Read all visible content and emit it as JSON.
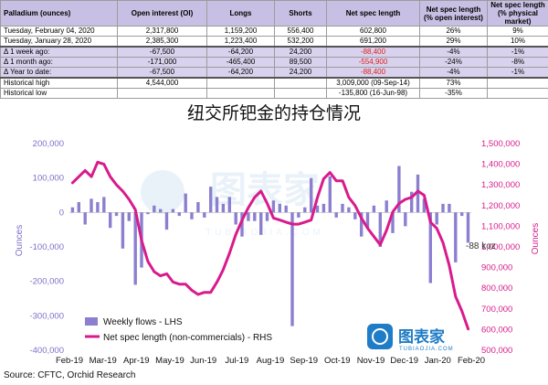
{
  "table": {
    "headers": [
      "Palladium (ounces)",
      "Open interest (OI)",
      "Longs",
      "Shorts",
      "Net spec length",
      "Net spec length (% open interest)",
      "Net spec length (% physical market)"
    ],
    "rows": [
      [
        "Tuesday, February 04, 2020",
        "2,317,800",
        "1,159,200",
        "556,400",
        "602,800",
        "26%",
        "9%"
      ],
      [
        "Tuesday, January 28, 2020",
        "2,385,300",
        "1,223,400",
        "532,200",
        "691,200",
        "29%",
        "10%"
      ],
      [
        "Δ 1 week ago:",
        "-67,500",
        "-64,200",
        "24,200",
        "-88,400",
        "-4%",
        "-1%"
      ],
      [
        "Δ 1 month ago:",
        "-171,000",
        "-465,400",
        "89,500",
        "-554,900",
        "-24%",
        "-8%"
      ],
      [
        "Δ Year to date:",
        "-67,500",
        "-64,200",
        "24,200",
        "-88,400",
        "-4%",
        "-1%"
      ],
      [
        "Historical high",
        "4,544,000",
        "",
        "",
        "3,009,000  (09-Sep-14)",
        "73%",
        ""
      ],
      [
        "Historical low",
        "",
        "",
        "",
        "-135,800  (16-Jun-98)",
        "-35%",
        ""
      ]
    ]
  },
  "chart_data": {
    "type": "bar+line",
    "title": "纽交所钯金的持仓情况",
    "ylabel_left": "Ounces",
    "ylabel_right": "Ounces",
    "ylim_left": [
      -400000,
      200000
    ],
    "ylim_right": [
      500000,
      1500000
    ],
    "yticks_left": [
      "200,000",
      "100,000",
      "0",
      "-100,000",
      "-200,000",
      "-300,000",
      "-400,000"
    ],
    "yticks_right": [
      "1,500,000",
      "1,400,000",
      "1,300,000",
      "1,200,000",
      "1,100,000",
      "1,000,000",
      "900,000",
      "800,000",
      "700,000",
      "600,000",
      "500,000"
    ],
    "xticks": [
      "Feb-19",
      "Mar-19",
      "Apr-19",
      "May-19",
      "Jun-19",
      "Jul-19",
      "Aug-19",
      "Sep-19",
      "Oct-19",
      "Nov-19",
      "Dec-19",
      "Jan-20",
      "Feb-20"
    ],
    "legend": [
      "Weekly flows - LHS",
      "Net spec length (non-commercials) - RHS"
    ],
    "annotation": "-88 koz",
    "source": "Source: CFTC, Orchid Research",
    "watermark": "图表家",
    "watermark_sub": "TUBIAOJIA.COM",
    "series": [
      {
        "name": "Weekly flows - LHS",
        "color": "#8b7fd0",
        "values": [
          15000,
          30000,
          -35000,
          40000,
          30000,
          45000,
          -45000,
          -10000,
          -105000,
          -25000,
          -210000,
          -160000,
          -5000,
          20000,
          10000,
          -50000,
          10000,
          -10000,
          55000,
          -20000,
          30000,
          -15000,
          75000,
          45000,
          25000,
          45000,
          -35000,
          -70000,
          -25000,
          -25000,
          -65000,
          -25000,
          35000,
          25000,
          20000,
          -330000,
          -15000,
          15000,
          100000,
          20000,
          25000,
          105000,
          -15000,
          25000,
          15000,
          -20000,
          -70000,
          -45000,
          20000,
          -100000,
          35000,
          -60000,
          135000,
          -40000,
          60000,
          110000,
          40000,
          -205000,
          -35000,
          25000,
          25000,
          -145000,
          -10000,
          -88000
        ]
      },
      {
        "name": "Net spec length (non-commercials) - RHS",
        "color": "#d81b8c",
        "values": [
          1310000,
          1340000,
          1370000,
          1340000,
          1410000,
          1400000,
          1340000,
          1300000,
          1270000,
          1230000,
          1180000,
          1030000,
          930000,
          880000,
          860000,
          870000,
          830000,
          820000,
          820000,
          790000,
          770000,
          780000,
          780000,
          830000,
          890000,
          970000,
          1060000,
          1130000,
          1190000,
          1240000,
          1270000,
          1210000,
          1140000,
          1130000,
          1120000,
          1110000,
          1110000,
          1120000,
          1130000,
          1240000,
          1330000,
          1360000,
          1320000,
          1320000,
          1240000,
          1200000,
          1140000,
          1090000,
          1050000,
          1010000,
          1080000,
          1170000,
          1210000,
          1230000,
          1240000,
          1270000,
          1250000,
          1120000,
          1090000,
          1020000,
          910000,
          760000,
          690000,
          603000
        ]
      }
    ]
  }
}
